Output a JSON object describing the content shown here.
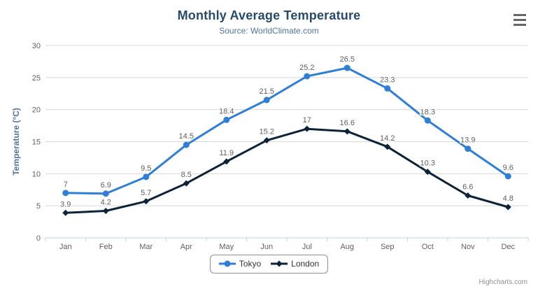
{
  "chart_data": {
    "type": "line",
    "title": "Monthly Average Temperature",
    "subtitle": "Source: WorldClimate.com",
    "categories": [
      "Jan",
      "Feb",
      "Mar",
      "Apr",
      "May",
      "Jun",
      "Jul",
      "Aug",
      "Sep",
      "Oct",
      "Nov",
      "Dec"
    ],
    "series": [
      {
        "name": "Tokyo",
        "color": "#2f7ed8",
        "marker": "circle",
        "values": [
          7,
          6.9,
          9.5,
          14.5,
          18.4,
          21.5,
          25.2,
          26.5,
          23.3,
          18.3,
          13.9,
          9.6
        ]
      },
      {
        "name": "London",
        "color": "#0d233a",
        "marker": "diamond",
        "values": [
          3.9,
          4.2,
          5.7,
          8.5,
          11.9,
          15.2,
          17,
          16.6,
          14.2,
          10.3,
          6.6,
          4.8
        ]
      }
    ],
    "xlabel": "",
    "ylabel": "Temperature (°C)",
    "ylim": [
      0,
      30
    ],
    "ytick_step": 5,
    "grid": true,
    "data_labels": true,
    "legend_position": "bottom"
  },
  "credits": {
    "label": "Highcharts.com"
  },
  "icons": {
    "context_menu": "hamburger-icon"
  },
  "colors": {
    "title": "#274b6d",
    "subtitle": "#4d759e",
    "axis_title": "#4d759e",
    "axis_labels": "#606060",
    "data_labels": "#606060",
    "grid_line": "#d8d8d8",
    "axis_line": "#c0d0e0",
    "legend_border": "#909090",
    "legend_text": "#333333",
    "credits_text": "#909090",
    "background": "#ffffff"
  }
}
